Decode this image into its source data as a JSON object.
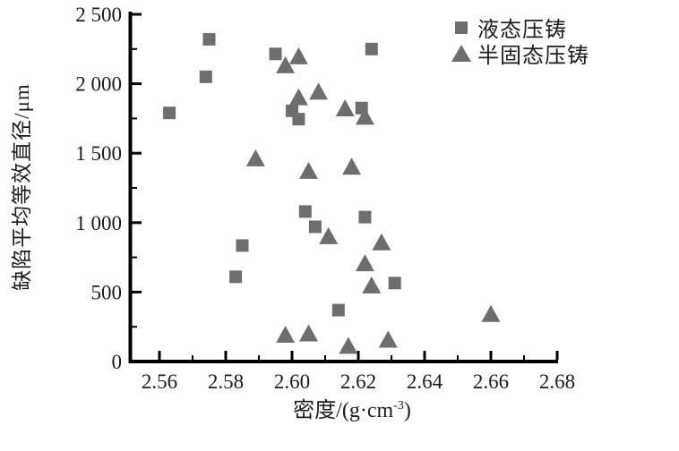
{
  "figure": {
    "background": "#ffffff",
    "axis_color": "#000000",
    "text_color": "#1c1c1c",
    "marker_color": "#6e6e6e",
    "xlabel_base": "密度/(g·cm",
    "xlabel_exp": "-3",
    "xlabel_close": ")"
  },
  "chart_data": {
    "type": "scatter",
    "title": "",
    "xlabel": "密度/(g·cm⁻³)",
    "ylabel": "缺陷平均等效直径/μm",
    "xlim": [
      2.55,
      2.68
    ],
    "ylim": [
      0,
      2500
    ],
    "grid": false,
    "legend_position": "top-right-inside",
    "x_major_ticks": [
      2.56,
      2.58,
      2.6,
      2.62,
      2.64,
      2.66,
      2.68
    ],
    "x_tick_labels": [
      "2.56",
      "2.58",
      "2.60",
      "2.62",
      "2.64",
      "2.66",
      "2.68"
    ],
    "x_minor_ticks": [
      2.57,
      2.59,
      2.61,
      2.63,
      2.65,
      2.67
    ],
    "y_major_ticks": [
      0,
      500,
      1000,
      1500,
      2000,
      2500
    ],
    "y_tick_labels": [
      "0",
      "500",
      "1 000",
      "1 500",
      "2 000",
      "2 500"
    ],
    "y_minor_ticks": [
      250,
      750,
      1250,
      1750,
      2250
    ],
    "series": [
      {
        "name": "液态压铸",
        "marker": "square",
        "color": "#6e6e6e",
        "points": [
          [
            2.563,
            1790
          ],
          [
            2.574,
            2050
          ],
          [
            2.575,
            2320
          ],
          [
            2.583,
            610
          ],
          [
            2.585,
            835
          ],
          [
            2.595,
            2215
          ],
          [
            2.6,
            1805
          ],
          [
            2.602,
            1745
          ],
          [
            2.604,
            1080
          ],
          [
            2.607,
            970
          ],
          [
            2.614,
            370
          ],
          [
            2.621,
            1825
          ],
          [
            2.622,
            1040
          ],
          [
            2.624,
            2250
          ],
          [
            2.631,
            565
          ]
        ]
      },
      {
        "name": "半固态压铸",
        "marker": "triangle",
        "color": "#6e6e6e",
        "points": [
          [
            2.589,
            1460
          ],
          [
            2.598,
            2130
          ],
          [
            2.598,
            190
          ],
          [
            2.602,
            2195
          ],
          [
            2.602,
            1900
          ],
          [
            2.605,
            1370
          ],
          [
            2.605,
            200
          ],
          [
            2.608,
            1940
          ],
          [
            2.611,
            900
          ],
          [
            2.616,
            1820
          ],
          [
            2.617,
            110
          ],
          [
            2.618,
            1400
          ],
          [
            2.622,
            1760
          ],
          [
            2.622,
            705
          ],
          [
            2.624,
            545
          ],
          [
            2.627,
            855
          ],
          [
            2.629,
            155
          ],
          [
            2.66,
            340
          ]
        ]
      }
    ]
  }
}
